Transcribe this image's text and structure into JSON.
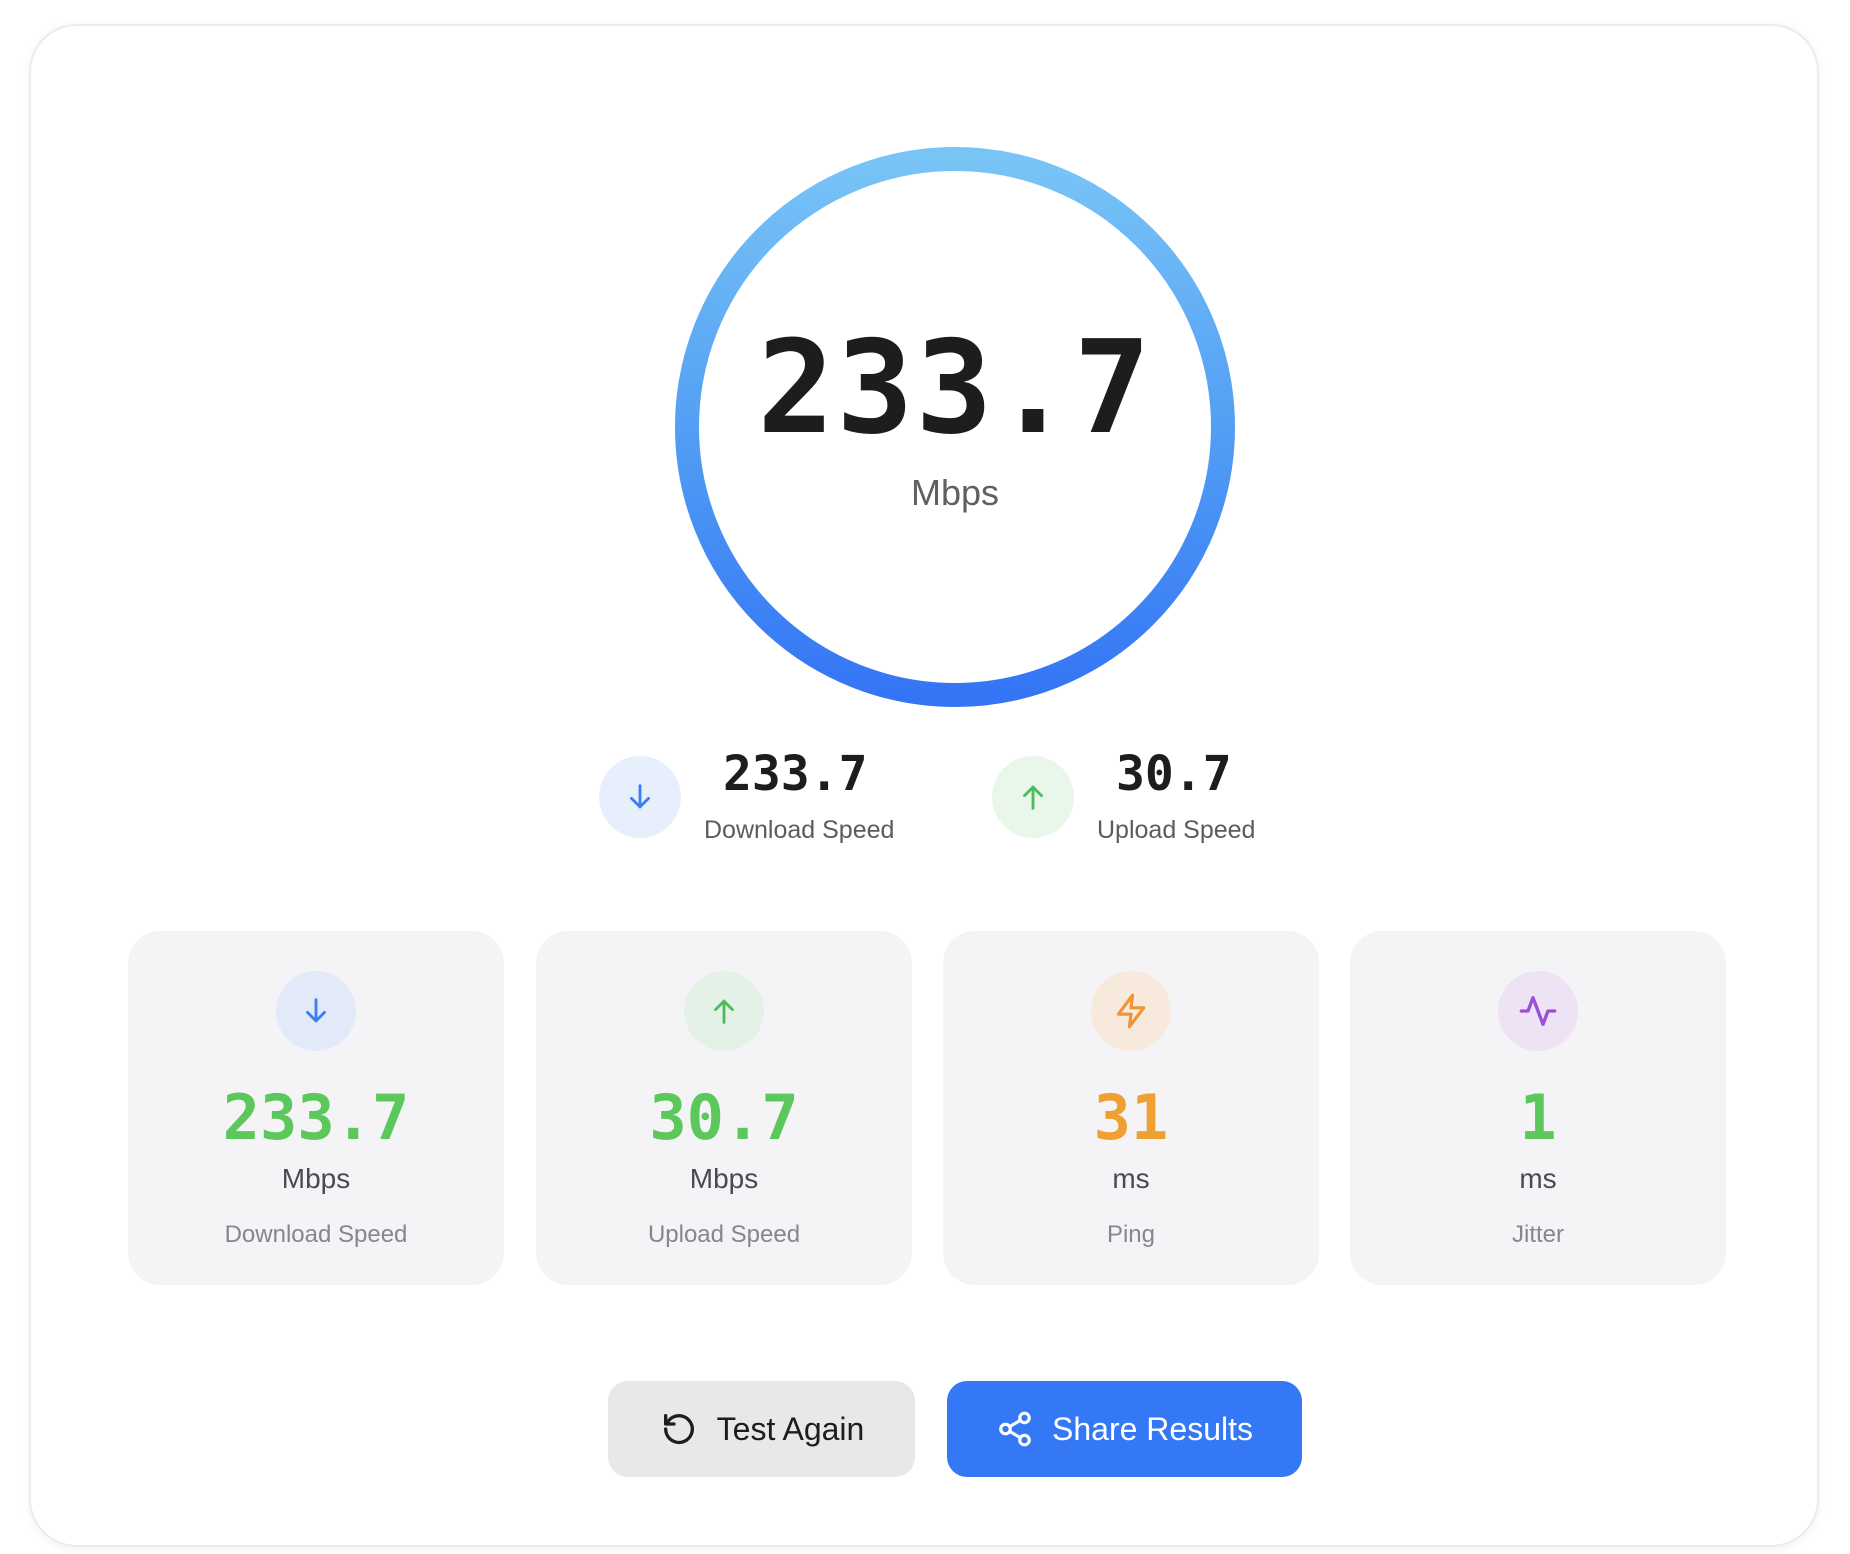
{
  "gauge": {
    "value": "233.7",
    "unit": "Mbps"
  },
  "summary": {
    "download": {
      "value": "233.7",
      "label": "Download Speed",
      "icon": "arrow-down-icon"
    },
    "upload": {
      "value": "30.7",
      "label": "Upload Speed",
      "icon": "arrow-up-icon"
    }
  },
  "stats": [
    {
      "value": "233.7",
      "unit": "Mbps",
      "label": "Download Speed",
      "icon": "arrow-down-icon",
      "color": "#5cc85c"
    },
    {
      "value": "30.7",
      "unit": "Mbps",
      "label": "Upload Speed",
      "icon": "arrow-up-icon",
      "color": "#5cc85c"
    },
    {
      "value": "31",
      "unit": "ms",
      "label": "Ping",
      "icon": "bolt-icon",
      "color": "#f0a030"
    },
    {
      "value": "1",
      "unit": "ms",
      "label": "Jitter",
      "icon": "activity-icon",
      "color": "#5cc85c"
    }
  ],
  "actions": {
    "test_again": "Test Again",
    "share_results": "Share Results"
  },
  "colors": {
    "accent": "#3478f6",
    "download_icon": "#3b7ef5",
    "upload_icon": "#4cbb5c",
    "ping_icon": "#f0943a",
    "jitter_icon": "#9b4fd6"
  }
}
